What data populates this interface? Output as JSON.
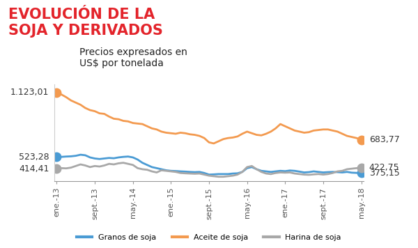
{
  "chart_data": {
    "type": "line",
    "title": "EVOLUCIÓN DE LA\nSOJA Y DERIVADOS",
    "subtitle": "Precios expresados en\nUS$ por tonelada",
    "categories": [
      "ene.-13",
      null,
      null,
      null,
      null,
      null,
      null,
      null,
      "sept.-13",
      null,
      null,
      null,
      null,
      null,
      null,
      null,
      "may.-14",
      null,
      null,
      null,
      null,
      null,
      null,
      null,
      "ene.-15",
      null,
      null,
      null,
      null,
      null,
      null,
      null,
      "sept.-15",
      null,
      null,
      null,
      null,
      null,
      null,
      null,
      "may.-16",
      null,
      null,
      null,
      null,
      null,
      null,
      null,
      "ene.-17",
      null,
      null,
      null,
      null,
      null,
      null,
      null,
      "sept.-17",
      null,
      null,
      null,
      null,
      null,
      null,
      null,
      "may.-18"
    ],
    "series": [
      {
        "name": "Granos de soja",
        "color": "#4a9bd4",
        "marker": "o",
        "line_style": "solid",
        "values": [
          523.28,
          525,
          528,
          530,
          535,
          545,
          540,
          520,
          510,
          505,
          510,
          515,
          512,
          520,
          525,
          528,
          520,
          500,
          470,
          450,
          430,
          420,
          410,
          400,
          395,
          393,
          390,
          388,
          385,
          383,
          385,
          375,
          360,
          362,
          365,
          365,
          365,
          370,
          372,
          385,
          420,
          430,
          410,
          395,
          390,
          385,
          390,
          395,
          392,
          398,
          395,
          388,
          380,
          383,
          390,
          385,
          380,
          383,
          385,
          383,
          380,
          385,
          378,
          376,
          375.15
        ],
        "value_labels": [
          "523,28",
          null,
          null,
          null,
          null,
          null,
          null,
          null,
          null,
          null,
          null,
          null,
          null,
          null,
          null,
          null,
          null,
          null,
          null,
          null,
          null,
          null,
          null,
          null,
          null,
          null,
          null,
          null,
          null,
          null,
          null,
          null,
          null,
          null,
          null,
          null,
          null,
          null,
          null,
          null,
          null,
          null,
          null,
          null,
          null,
          null,
          null,
          null,
          null,
          null,
          null,
          null,
          null,
          null,
          null,
          null,
          null,
          null,
          null,
          null,
          null,
          null,
          null,
          null,
          "375,15"
        ]
      },
      {
        "name": "Aceite de soja",
        "color": "#f39a4f",
        "marker": "o",
        "line_style": "solid",
        "values": [
          1123.01,
          1105,
          1080,
          1050,
          1030,
          1010,
          980,
          960,
          950,
          930,
          925,
          900,
          880,
          875,
          860,
          855,
          840,
          835,
          830,
          810,
          790,
          780,
          760,
          750,
          745,
          740,
          750,
          745,
          735,
          730,
          720,
          700,
          660,
          650,
          670,
          690,
          700,
          705,
          715,
          740,
          760,
          745,
          730,
          725,
          740,
          760,
          790,
          830,
          810,
          790,
          770,
          760,
          750,
          755,
          770,
          775,
          780,
          780,
          770,
          760,
          740,
          720,
          710,
          700,
          683.77
        ],
        "value_labels": [
          "1.123,01",
          null,
          null,
          null,
          null,
          null,
          null,
          null,
          null,
          null,
          null,
          null,
          null,
          null,
          null,
          null,
          null,
          null,
          null,
          null,
          null,
          null,
          null,
          null,
          null,
          null,
          null,
          null,
          null,
          null,
          null,
          null,
          null,
          null,
          null,
          null,
          null,
          null,
          null,
          null,
          null,
          null,
          null,
          null,
          null,
          null,
          null,
          null,
          null,
          null,
          null,
          null,
          null,
          null,
          null,
          null,
          null,
          null,
          null,
          null,
          null,
          null,
          null,
          null,
          "683,77"
        ]
      },
      {
        "name": "Harina de soja",
        "color": "#a8a8a8",
        "marker": "o",
        "line_style": "solid",
        "values": [
          414.41,
          420,
          418,
          425,
          440,
          455,
          445,
          430,
          440,
          435,
          445,
          460,
          455,
          465,
          470,
          460,
          450,
          420,
          410,
          405,
          390,
          380,
          400,
          395,
          390,
          385,
          375,
          372,
          370,
          368,
          370,
          360,
          350,
          345,
          340,
          340,
          345,
          350,
          360,
          385,
          430,
          440,
          410,
          385,
          370,
          365,
          375,
          380,
          378,
          380,
          370,
          365,
          360,
          358,
          362,
          365,
          360,
          365,
          375,
          390,
          395,
          410,
          415,
          420,
          422.75
        ],
        "value_labels": [
          "414,41",
          null,
          null,
          null,
          null,
          null,
          null,
          null,
          null,
          null,
          null,
          null,
          null,
          null,
          null,
          null,
          null,
          null,
          null,
          null,
          null,
          null,
          null,
          null,
          null,
          null,
          null,
          null,
          null,
          null,
          null,
          null,
          null,
          null,
          null,
          null,
          null,
          null,
          null,
          null,
          null,
          null,
          null,
          null,
          null,
          null,
          null,
          null,
          null,
          null,
          null,
          null,
          null,
          null,
          null,
          null,
          null,
          null,
          null,
          null,
          null,
          null,
          null,
          null,
          "422,75"
        ]
      }
    ],
    "ylim": [
      300,
      1200
    ],
    "tick_labels": "x",
    "data_labels": true,
    "grid": false,
    "legend": "lower center"
  }
}
